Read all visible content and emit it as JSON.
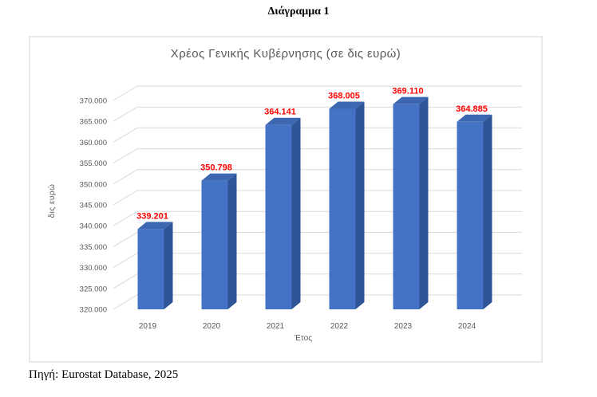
{
  "page": {
    "title": "Διάγραμμα 1",
    "source_note": "Πηγή: Eurostat Database, 2025"
  },
  "chart_data": {
    "type": "bar",
    "style": "3d-clustered-column",
    "title": "Χρέος Γενικής Κυβέρνησης (σε δις ευρώ)",
    "xlabel": "Έτος",
    "ylabel": "δις ευρώ",
    "categories": [
      "2019",
      "2020",
      "2021",
      "2022",
      "2023",
      "2024"
    ],
    "values": [
      339.201,
      350.798,
      364.141,
      368.005,
      369.11,
      364.885
    ],
    "value_labels": [
      "339.201",
      "350.798",
      "364.141",
      "368.005",
      "369.110",
      "364.885"
    ],
    "ylim": [
      320,
      370
    ],
    "ytick_step": 5,
    "ytick_labels": [
      "320.000",
      "325.000",
      "330.000",
      "335.000",
      "340.000",
      "345.000",
      "350.000",
      "355.000",
      "360.000",
      "365.000",
      "370.000"
    ],
    "grid": true,
    "legend": false,
    "colors": {
      "bar_front": "#4472C4",
      "bar_side": "#2E5597",
      "bar_top": "#3D68B1",
      "value_label": "#FF0000",
      "axis_text": "#595959",
      "gridline": "#D9D9D9",
      "chart_border": "#E9E9E9"
    }
  }
}
